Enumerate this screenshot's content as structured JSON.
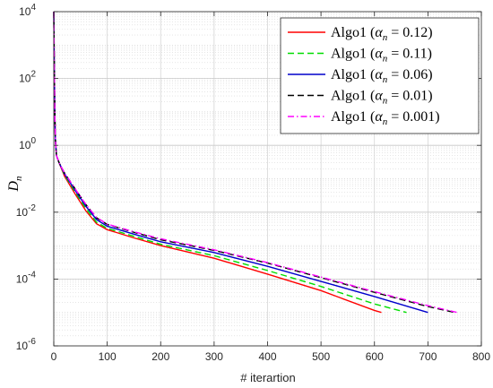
{
  "chart_data": {
    "type": "line",
    "xlabel": "# iterartion",
    "ylabel": "D",
    "ylabel_subscript": "n",
    "xlim": [
      0,
      800
    ],
    "ylim": [
      1e-06,
      10000.0
    ],
    "yscale": "log",
    "grid": true,
    "minor_grid": true,
    "legend_position": "top-right",
    "x_ticks": [
      0,
      100,
      200,
      300,
      400,
      500,
      600,
      700,
      800
    ],
    "x_tick_labels": [
      "0",
      "100",
      "200",
      "300",
      "400",
      "500",
      "600",
      "700",
      "800"
    ],
    "y_ticks": [
      1e-06,
      0.0001,
      0.01,
      1.0,
      100.0,
      10000.0
    ],
    "y_tick_labels": [
      {
        "base": "10",
        "exp": "-6"
      },
      {
        "base": "10",
        "exp": "-4"
      },
      {
        "base": "10",
        "exp": "-2"
      },
      {
        "base": "10",
        "exp": "0"
      },
      {
        "base": "10",
        "exp": "2"
      },
      {
        "base": "10",
        "exp": "4"
      }
    ],
    "series": [
      {
        "name": "Algo1 (α_n = 0.12)",
        "legend_prefix": "Algo1 (",
        "legend_alpha": "α",
        "legend_sub": "n",
        "legend_suffix": " = 0.12)",
        "color": "#ff0000",
        "dash": "solid",
        "points": [
          [
            0,
            10000
          ],
          [
            1,
            200
          ],
          [
            2,
            8
          ],
          [
            3,
            1.5
          ],
          [
            5,
            0.5
          ],
          [
            10,
            0.3
          ],
          [
            20,
            0.12
          ],
          [
            40,
            0.035
          ],
          [
            60,
            0.011
          ],
          [
            80,
            0.0045
          ],
          [
            100,
            0.003
          ],
          [
            150,
            0.0017
          ],
          [
            200,
            0.001
          ],
          [
            300,
            0.00042
          ],
          [
            400,
            0.00014
          ],
          [
            500,
            4.5e-05
          ],
          [
            600,
            1.15e-05
          ],
          [
            613,
            1e-05
          ]
        ]
      },
      {
        "name": "Algo1 (α_n = 0.11)",
        "legend_prefix": "Algo1 (",
        "legend_alpha": "α",
        "legend_sub": "n",
        "legend_suffix": " = 0.11)",
        "color": "#00dd00",
        "dash": "dashed",
        "points": [
          [
            0,
            10000
          ],
          [
            1,
            200
          ],
          [
            2,
            8
          ],
          [
            3,
            1.5
          ],
          [
            5,
            0.5
          ],
          [
            10,
            0.3
          ],
          [
            20,
            0.13
          ],
          [
            40,
            0.04
          ],
          [
            60,
            0.013
          ],
          [
            80,
            0.005
          ],
          [
            100,
            0.0033
          ],
          [
            150,
            0.0019
          ],
          [
            200,
            0.0011
          ],
          [
            300,
            0.0005
          ],
          [
            400,
            0.00018
          ],
          [
            500,
            6e-05
          ],
          [
            600,
            1.8e-05
          ],
          [
            660,
            1e-05
          ]
        ]
      },
      {
        "name": "Algo1 (α_n = 0.06)",
        "legend_prefix": "Algo1 (",
        "legend_alpha": "α",
        "legend_sub": "n",
        "legend_suffix": " = 0.06)",
        "color": "#0000cc",
        "dash": "solid",
        "points": [
          [
            0,
            10000
          ],
          [
            1,
            200
          ],
          [
            2,
            8
          ],
          [
            3,
            1.5
          ],
          [
            5,
            0.5
          ],
          [
            10,
            0.3
          ],
          [
            20,
            0.14
          ],
          [
            40,
            0.045
          ],
          [
            60,
            0.015
          ],
          [
            80,
            0.006
          ],
          [
            100,
            0.0038
          ],
          [
            150,
            0.0022
          ],
          [
            200,
            0.0013
          ],
          [
            300,
            0.00062
          ],
          [
            400,
            0.00024
          ],
          [
            500,
            8.5e-05
          ],
          [
            600,
            3e-05
          ],
          [
            700,
            1e-05
          ]
        ]
      },
      {
        "name": "Algo1 (α_n = 0.01)",
        "legend_prefix": "Algo1 (",
        "legend_alpha": "α",
        "legend_sub": "n",
        "legend_suffix": " = 0.01)",
        "color": "#000000",
        "dash": "dashed",
        "points": [
          [
            0,
            10000
          ],
          [
            1,
            200
          ],
          [
            2,
            8
          ],
          [
            3,
            1.5
          ],
          [
            5,
            0.5
          ],
          [
            10,
            0.3
          ],
          [
            20,
            0.15
          ],
          [
            40,
            0.05
          ],
          [
            60,
            0.017
          ],
          [
            80,
            0.0068
          ],
          [
            100,
            0.0043
          ],
          [
            150,
            0.0025
          ],
          [
            200,
            0.0015
          ],
          [
            300,
            0.00072
          ],
          [
            400,
            0.0003
          ],
          [
            500,
            0.00011
          ],
          [
            600,
            4e-05
          ],
          [
            700,
            1.5e-05
          ],
          [
            750,
            1e-05
          ]
        ]
      },
      {
        "name": "Algo1 (α_n = 0.001)",
        "legend_prefix": "Algo1 (",
        "legend_alpha": "α",
        "legend_sub": "n",
        "legend_suffix": " = 0.001)",
        "color": "#ff00ff",
        "dash": "dashdot",
        "points": [
          [
            0,
            10000
          ],
          [
            1,
            200
          ],
          [
            2,
            8
          ],
          [
            3,
            1.5
          ],
          [
            5,
            0.5
          ],
          [
            10,
            0.3
          ],
          [
            20,
            0.15
          ],
          [
            40,
            0.05
          ],
          [
            60,
            0.017
          ],
          [
            80,
            0.007
          ],
          [
            100,
            0.0044
          ],
          [
            150,
            0.0026
          ],
          [
            200,
            0.0016
          ],
          [
            300,
            0.00075
          ],
          [
            400,
            0.00031
          ],
          [
            500,
            0.000115
          ],
          [
            600,
            4.2e-05
          ],
          [
            700,
            1.6e-05
          ],
          [
            755,
            1e-05
          ]
        ]
      }
    ]
  }
}
